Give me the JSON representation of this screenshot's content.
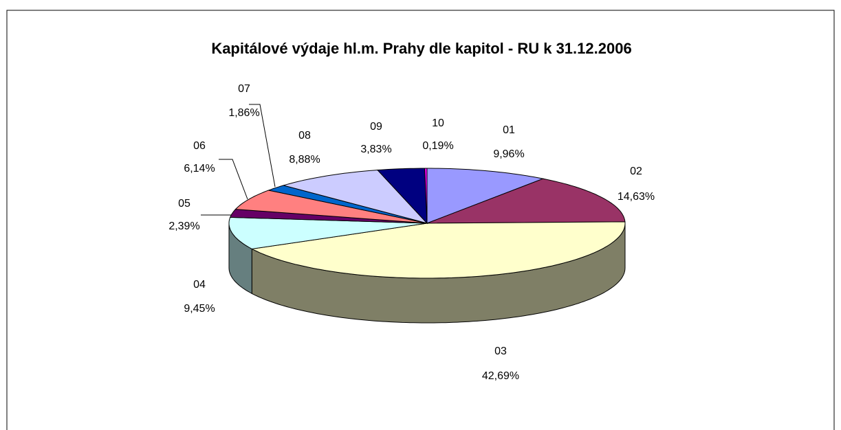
{
  "chart_data": {
    "type": "pie",
    "title": "Kapitálové výdaje hl.m. Prahy dle kapitol - RU k 31.12.2006",
    "categories": [
      "01",
      "02",
      "03",
      "04",
      "05",
      "06",
      "07",
      "08",
      "09",
      "10"
    ],
    "values": [
      9.96,
      14.63,
      42.69,
      9.45,
      2.39,
      6.14,
      1.86,
      8.88,
      3.83,
      0.19
    ],
    "value_labels": [
      "9,96%",
      "14,63%",
      "42,69%",
      "9,45%",
      "2,39%",
      "6,14%",
      "1,86%",
      "8,88%",
      "3,83%",
      "0,19%"
    ],
    "colors": [
      "#9999ff",
      "#993366",
      "#ffffcc",
      "#ccffff",
      "#660066",
      "#ff8080",
      "#0066cc",
      "#ccccff",
      "#000080",
      "#ff00ff"
    ]
  }
}
